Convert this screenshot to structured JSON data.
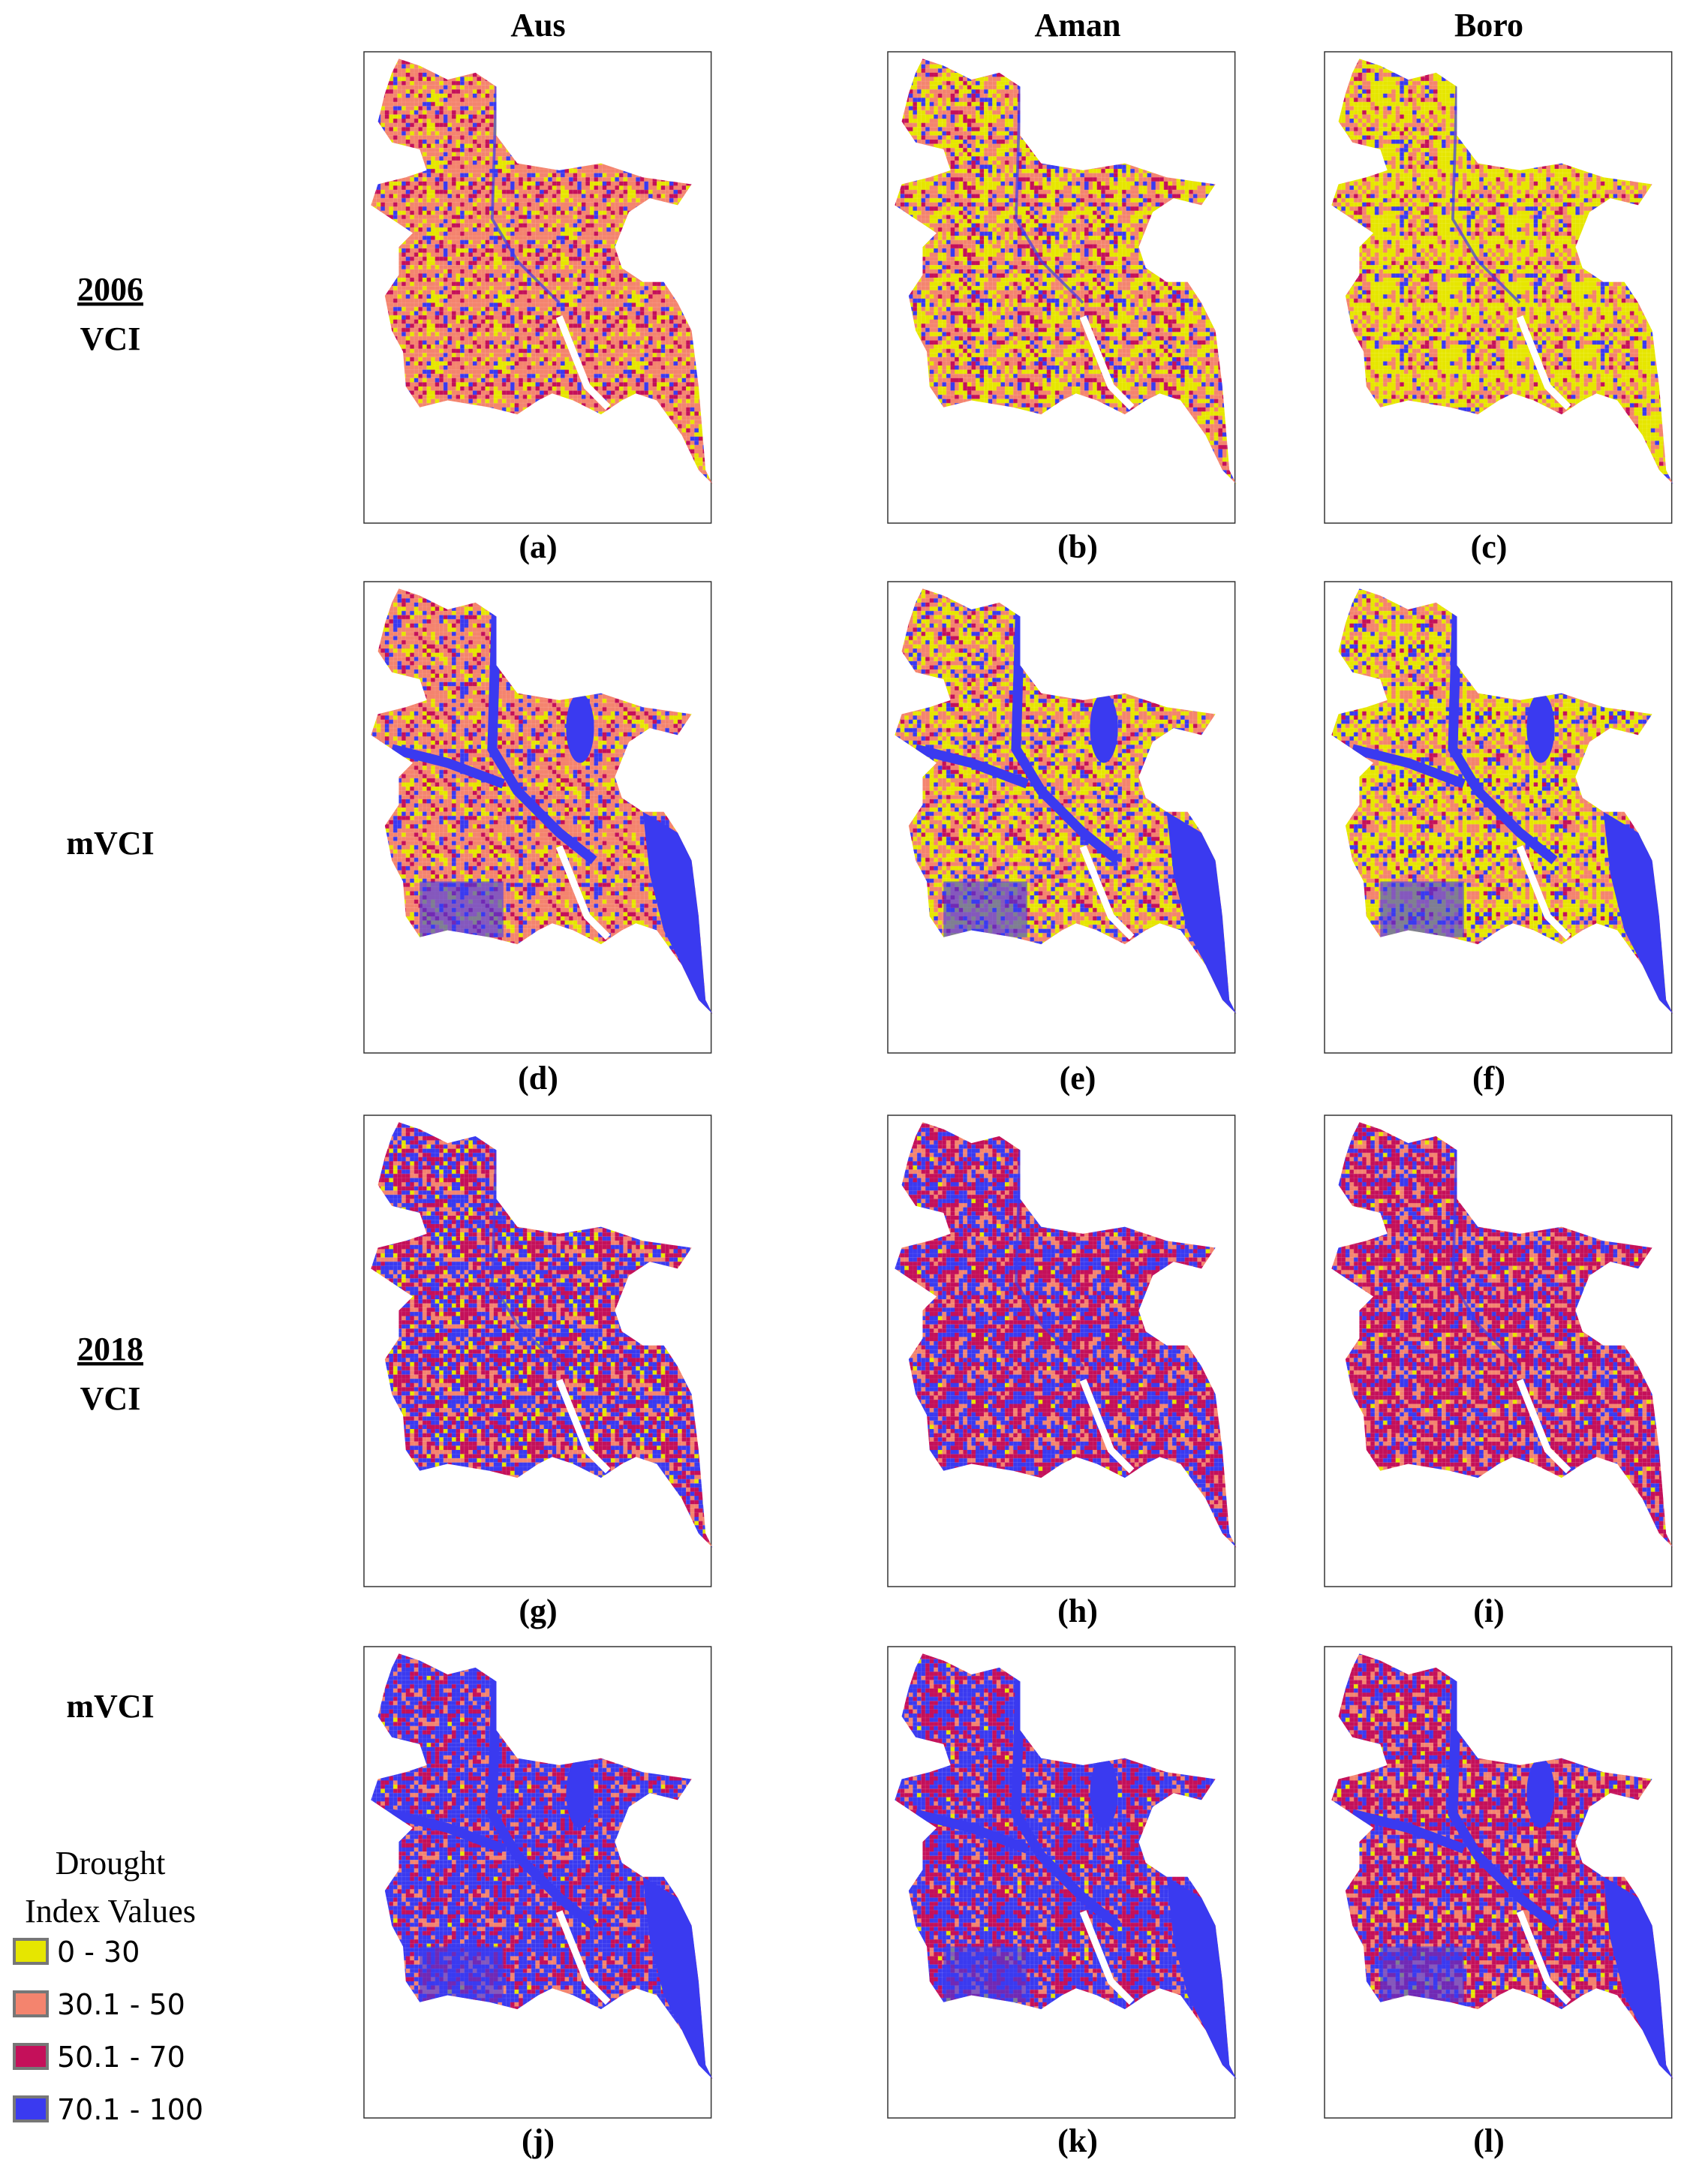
{
  "column_headers": [
    "Aus",
    "Aman",
    "Boro"
  ],
  "rows": [
    {
      "year": "2006",
      "index": "VCI",
      "panels": [
        "(a)",
        "(b)",
        "(c)"
      ]
    },
    {
      "index": "mVCI",
      "panels": [
        "(d)",
        "(e)",
        "(f)"
      ]
    },
    {
      "year": "2018",
      "index": "VCI",
      "panels": [
        "(g)",
        "(h)",
        "(i)"
      ]
    },
    {
      "index": "mVCI",
      "panels": [
        "(j)",
        "(k)",
        "(l)"
      ]
    }
  ],
  "legend": {
    "title_lines": [
      "Drought",
      "Index Values"
    ],
    "items": [
      {
        "label": "0 - 30",
        "color": "#e6e600"
      },
      {
        "label": "30.1 - 50",
        "color": "#f4846e"
      },
      {
        "label": "50.1 - 70",
        "color": "#c4105a"
      },
      {
        "label": "70.1 - 100",
        "color": "#3a3af0"
      }
    ]
  }
}
